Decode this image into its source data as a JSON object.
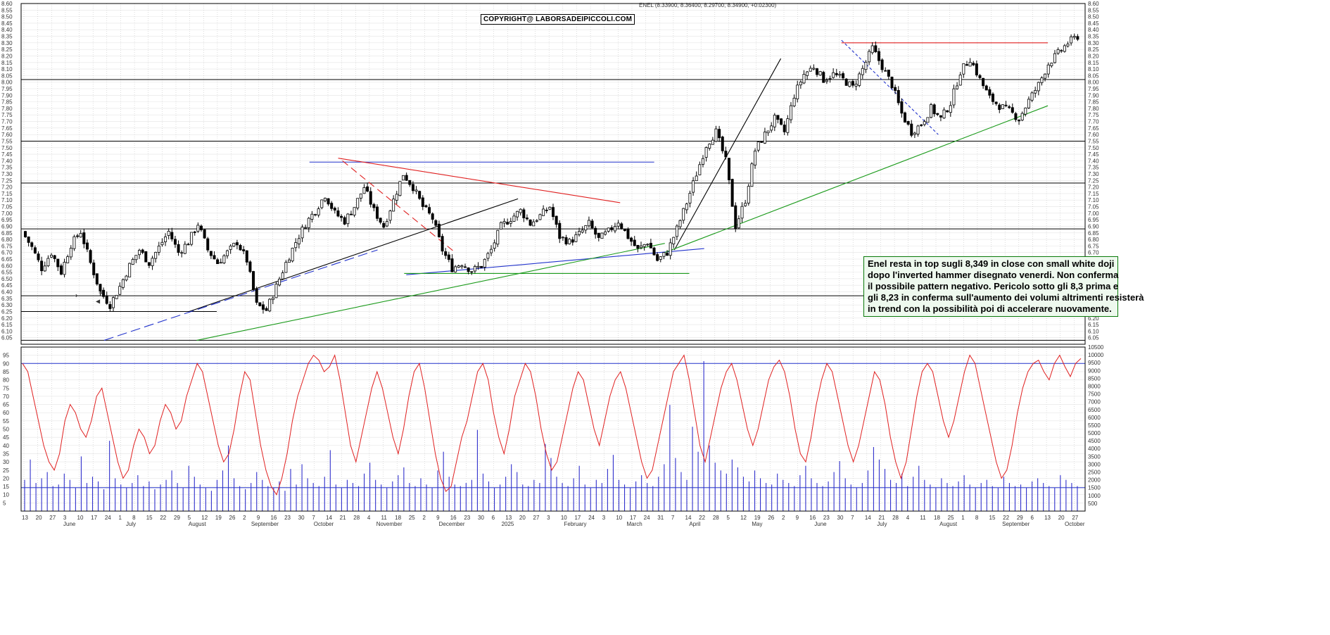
{
  "header": {
    "ohlc_line": "ENEL (8.33900, 8.36400, 8.29700, 8.34900, +0.02300)",
    "copyright": "COPYRIGHT@ LABORSADEIPICCOLI.COM"
  },
  "annotation": {
    "lines": [
      "Enel resta in top sugli 8,349 in close con small white doji",
      "dopo l'inverted hammer disegnato venerdi. Non conferma",
      "il possibile pattern negativo. Pericolo sotto gli 8,3 prima e",
      "gli 8,23 in conferma sull'aumento dei volumi altrimenti  resisterà",
      "in trend con la possibilità poi di accelerare nuovamente."
    ]
  },
  "colors": {
    "candle_up": "#ffffff",
    "candle_down": "#000000",
    "stochastic": "#e02020",
    "volume": "#3030cc",
    "trend_blue": "#2233cc",
    "trend_red": "#e02020",
    "trend_green": "#1a9a1a",
    "level_line": "#000000"
  },
  "chart_data": [
    {
      "type": "candlestick",
      "instrument": "ENEL",
      "price_range": [
        6.0,
        8.6
      ],
      "y_ticks": [
        6.05,
        6.1,
        6.15,
        6.2,
        6.25,
        6.3,
        6.35,
        6.4,
        6.45,
        6.5,
        6.55,
        6.6,
        6.65,
        6.7,
        6.75,
        6.8,
        6.85,
        6.9,
        6.95,
        7.0,
        7.05,
        7.1,
        7.15,
        7.2,
        7.25,
        7.3,
        7.35,
        7.4,
        7.45,
        7.5,
        7.55,
        7.6,
        7.65,
        7.7,
        7.75,
        7.8,
        7.85,
        7.9,
        7.95,
        8.0,
        8.05,
        8.1,
        8.15,
        8.2,
        8.25,
        8.3,
        8.35,
        8.4,
        8.45,
        8.5,
        8.55,
        8.6
      ],
      "day_labels": [
        "13",
        "20",
        "27",
        "3",
        "10",
        "17",
        "24",
        "1",
        "8",
        "15",
        "22",
        "29",
        "5",
        "12",
        "19",
        "26",
        "2",
        "9",
        "16",
        "23",
        "30",
        "7",
        "14",
        "21",
        "28",
        "4",
        "11",
        "18",
        "25",
        "2",
        "9",
        "16",
        "23",
        "30",
        "6",
        "13",
        "20",
        "27",
        "3",
        "10",
        "17",
        "24",
        "3",
        "10",
        "17",
        "24",
        "31",
        "7",
        "14",
        "22",
        "28",
        "5",
        "12",
        "19",
        "26",
        "2",
        "9",
        "16",
        "23",
        "30",
        "7",
        "14",
        "21",
        "28",
        "4",
        "11",
        "18",
        "25",
        "1",
        "8",
        "15",
        "22",
        "29",
        "6",
        "13",
        "20",
        "27"
      ],
      "month_labels": [
        "June",
        "July",
        "August",
        "September",
        "October",
        "November",
        "December",
        "2025",
        "February",
        "March",
        "April",
        "May",
        "June",
        "July",
        "August",
        "September",
        "October"
      ],
      "horizontal_levels": [
        6.25,
        6.37,
        6.88,
        7.23,
        7.55,
        8.02
      ],
      "path_points": [
        6.86,
        6.74,
        6.58,
        6.7,
        6.55,
        6.76,
        6.86,
        6.62,
        6.4,
        6.3,
        6.44,
        6.6,
        6.72,
        6.62,
        6.74,
        6.86,
        6.7,
        6.78,
        6.92,
        6.72,
        6.62,
        6.7,
        6.78,
        6.64,
        6.3,
        6.26,
        6.44,
        6.62,
        6.78,
        6.92,
        7.02,
        7.14,
        7.0,
        6.94,
        7.05,
        7.2,
        7.02,
        6.9,
        7.1,
        7.3,
        7.2,
        7.05,
        6.96,
        6.72,
        6.58,
        6.62,
        6.56,
        6.6,
        6.72,
        6.9,
        6.96,
        7.02,
        6.92,
        6.98,
        7.05,
        6.82,
        6.78,
        6.84,
        6.92,
        6.8,
        6.86,
        6.94,
        6.82,
        6.72,
        6.78,
        6.64,
        6.7,
        6.88,
        7.08,
        7.3,
        7.52,
        7.62,
        7.4,
        6.9,
        7.1,
        7.48,
        7.6,
        7.72,
        7.62,
        7.9,
        8.06,
        8.12,
        8.02,
        8.06,
        8.02,
        7.96,
        8.1,
        8.26,
        8.12,
        7.98,
        7.76,
        7.62,
        7.68,
        7.8,
        7.72,
        7.84,
        8.08,
        8.18,
        8.02,
        7.88,
        7.82,
        7.78,
        7.72,
        7.86,
        7.98,
        8.14,
        8.22,
        8.3,
        8.35
      ]
    },
    {
      "type": "line",
      "name": "Stochastic oscillator",
      "y_range": [
        0,
        100
      ],
      "y_ticks": [
        5,
        10,
        15,
        20,
        25,
        30,
        35,
        40,
        45,
        50,
        55,
        60,
        65,
        70,
        75,
        80,
        85,
        90,
        95
      ],
      "reference_line": 90,
      "values": [
        90,
        85,
        70,
        55,
        40,
        30,
        25,
        35,
        55,
        65,
        60,
        50,
        45,
        55,
        70,
        75,
        60,
        45,
        30,
        20,
        25,
        40,
        50,
        45,
        35,
        40,
        55,
        65,
        60,
        50,
        55,
        70,
        80,
        90,
        85,
        70,
        55,
        40,
        30,
        35,
        50,
        70,
        85,
        80,
        60,
        40,
        25,
        15,
        10,
        20,
        35,
        55,
        70,
        80,
        90,
        95,
        92,
        85,
        88,
        95,
        80,
        60,
        40,
        30,
        45,
        60,
        75,
        85,
        75,
        60,
        45,
        35,
        50,
        70,
        85,
        90,
        75,
        55,
        35,
        20,
        12,
        15,
        30,
        45,
        55,
        70,
        85,
        90,
        80,
        60,
        45,
        35,
        50,
        70,
        80,
        90,
        85,
        70,
        50,
        35,
        25,
        30,
        45,
        60,
        75,
        85,
        80,
        65,
        50,
        40,
        55,
        70,
        80,
        85,
        75,
        60,
        45,
        30,
        20,
        25,
        40,
        55,
        70,
        85,
        90,
        95,
        80,
        60,
        40,
        30,
        45,
        60,
        75,
        85,
        90,
        80,
        65,
        50,
        40,
        50,
        65,
        80,
        88,
        92,
        85,
        70,
        50,
        35,
        30,
        45,
        65,
        80,
        90,
        85,
        70,
        55,
        40,
        30,
        40,
        55,
        70,
        85,
        80,
        65,
        45,
        30,
        20,
        30,
        50,
        70,
        85,
        90,
        85,
        70,
        55,
        45,
        55,
        70,
        85,
        95,
        90,
        75,
        60,
        45,
        30,
        20,
        25,
        40,
        60,
        75,
        85,
        90,
        92,
        85,
        80,
        90,
        95,
        88,
        82,
        90,
        93
      ]
    },
    {
      "type": "bar",
      "name": "Volume",
      "y_range": [
        0,
        10500
      ],
      "y_ticks": [
        500,
        1000,
        1500,
        2000,
        2500,
        3000,
        3500,
        4000,
        4500,
        5000,
        5500,
        6000,
        6500,
        7000,
        7500,
        8000,
        8500,
        9000,
        9500,
        10000,
        10500
      ],
      "reference_line": 1500,
      "values": [
        2000,
        3300,
        1800,
        2100,
        2500,
        1600,
        1700,
        2400,
        2000,
        1500,
        3500,
        1800,
        2200,
        1900,
        1400,
        4500,
        2100,
        1700,
        1500,
        1800,
        2300,
        1600,
        1900,
        1400,
        1700,
        2000,
        2600,
        1800,
        1500,
        2900,
        2200,
        1700,
        1500,
        1300,
        2000,
        2600,
        4200,
        2100,
        1600,
        1400,
        1800,
        2500,
        2000,
        1600,
        1500,
        1900,
        1300,
        2700,
        1700,
        3000,
        2100,
        1800,
        1600,
        2200,
        3900,
        1700,
        1500,
        2000,
        1800,
        1600,
        2400,
        3100,
        2000,
        1700,
        1500,
        1900,
        2300,
        2800,
        1800,
        1600,
        2100,
        1700,
        1500,
        2600,
        3800,
        2200,
        1700,
        1600,
        1800,
        2000,
        5200,
        2400,
        1900,
        1500,
        1700,
        2200,
        3000,
        2500,
        1700,
        1600,
        2000,
        1800,
        4300,
        3400,
        2200,
        1800,
        1600,
        2100,
        2900,
        1700,
        1500,
        2000,
        1800,
        2700,
        3600,
        2000,
        1700,
        1500,
        1900,
        2300,
        1800,
        1600,
        2200,
        3000,
        6800,
        3400,
        2500,
        2000,
        5400,
        3800,
        9600,
        4200,
        3100,
        2600,
        2400,
        3300,
        2800,
        2200,
        1900,
        2600,
        2100,
        1800,
        1700,
        2400,
        2000,
        1800,
        1600,
        2300,
        2900,
        2100,
        1800,
        1600,
        1900,
        2500,
        3200,
        2100,
        1700,
        1500,
        1800,
        2600,
        4100,
        3300,
        2700,
        2000,
        1800,
        2400,
        1600,
        2200,
        2900,
        2000,
        1700,
        1500,
        2100,
        1800,
        1600,
        1900,
        2300,
        1700,
        1500,
        1800,
        2000,
        1600,
        1500,
        2200,
        1800,
        1600,
        1700,
        1500,
        1900,
        2100,
        1800,
        1600,
        1500,
        2300,
        2000,
        1800,
        1600
      ]
    }
  ]
}
